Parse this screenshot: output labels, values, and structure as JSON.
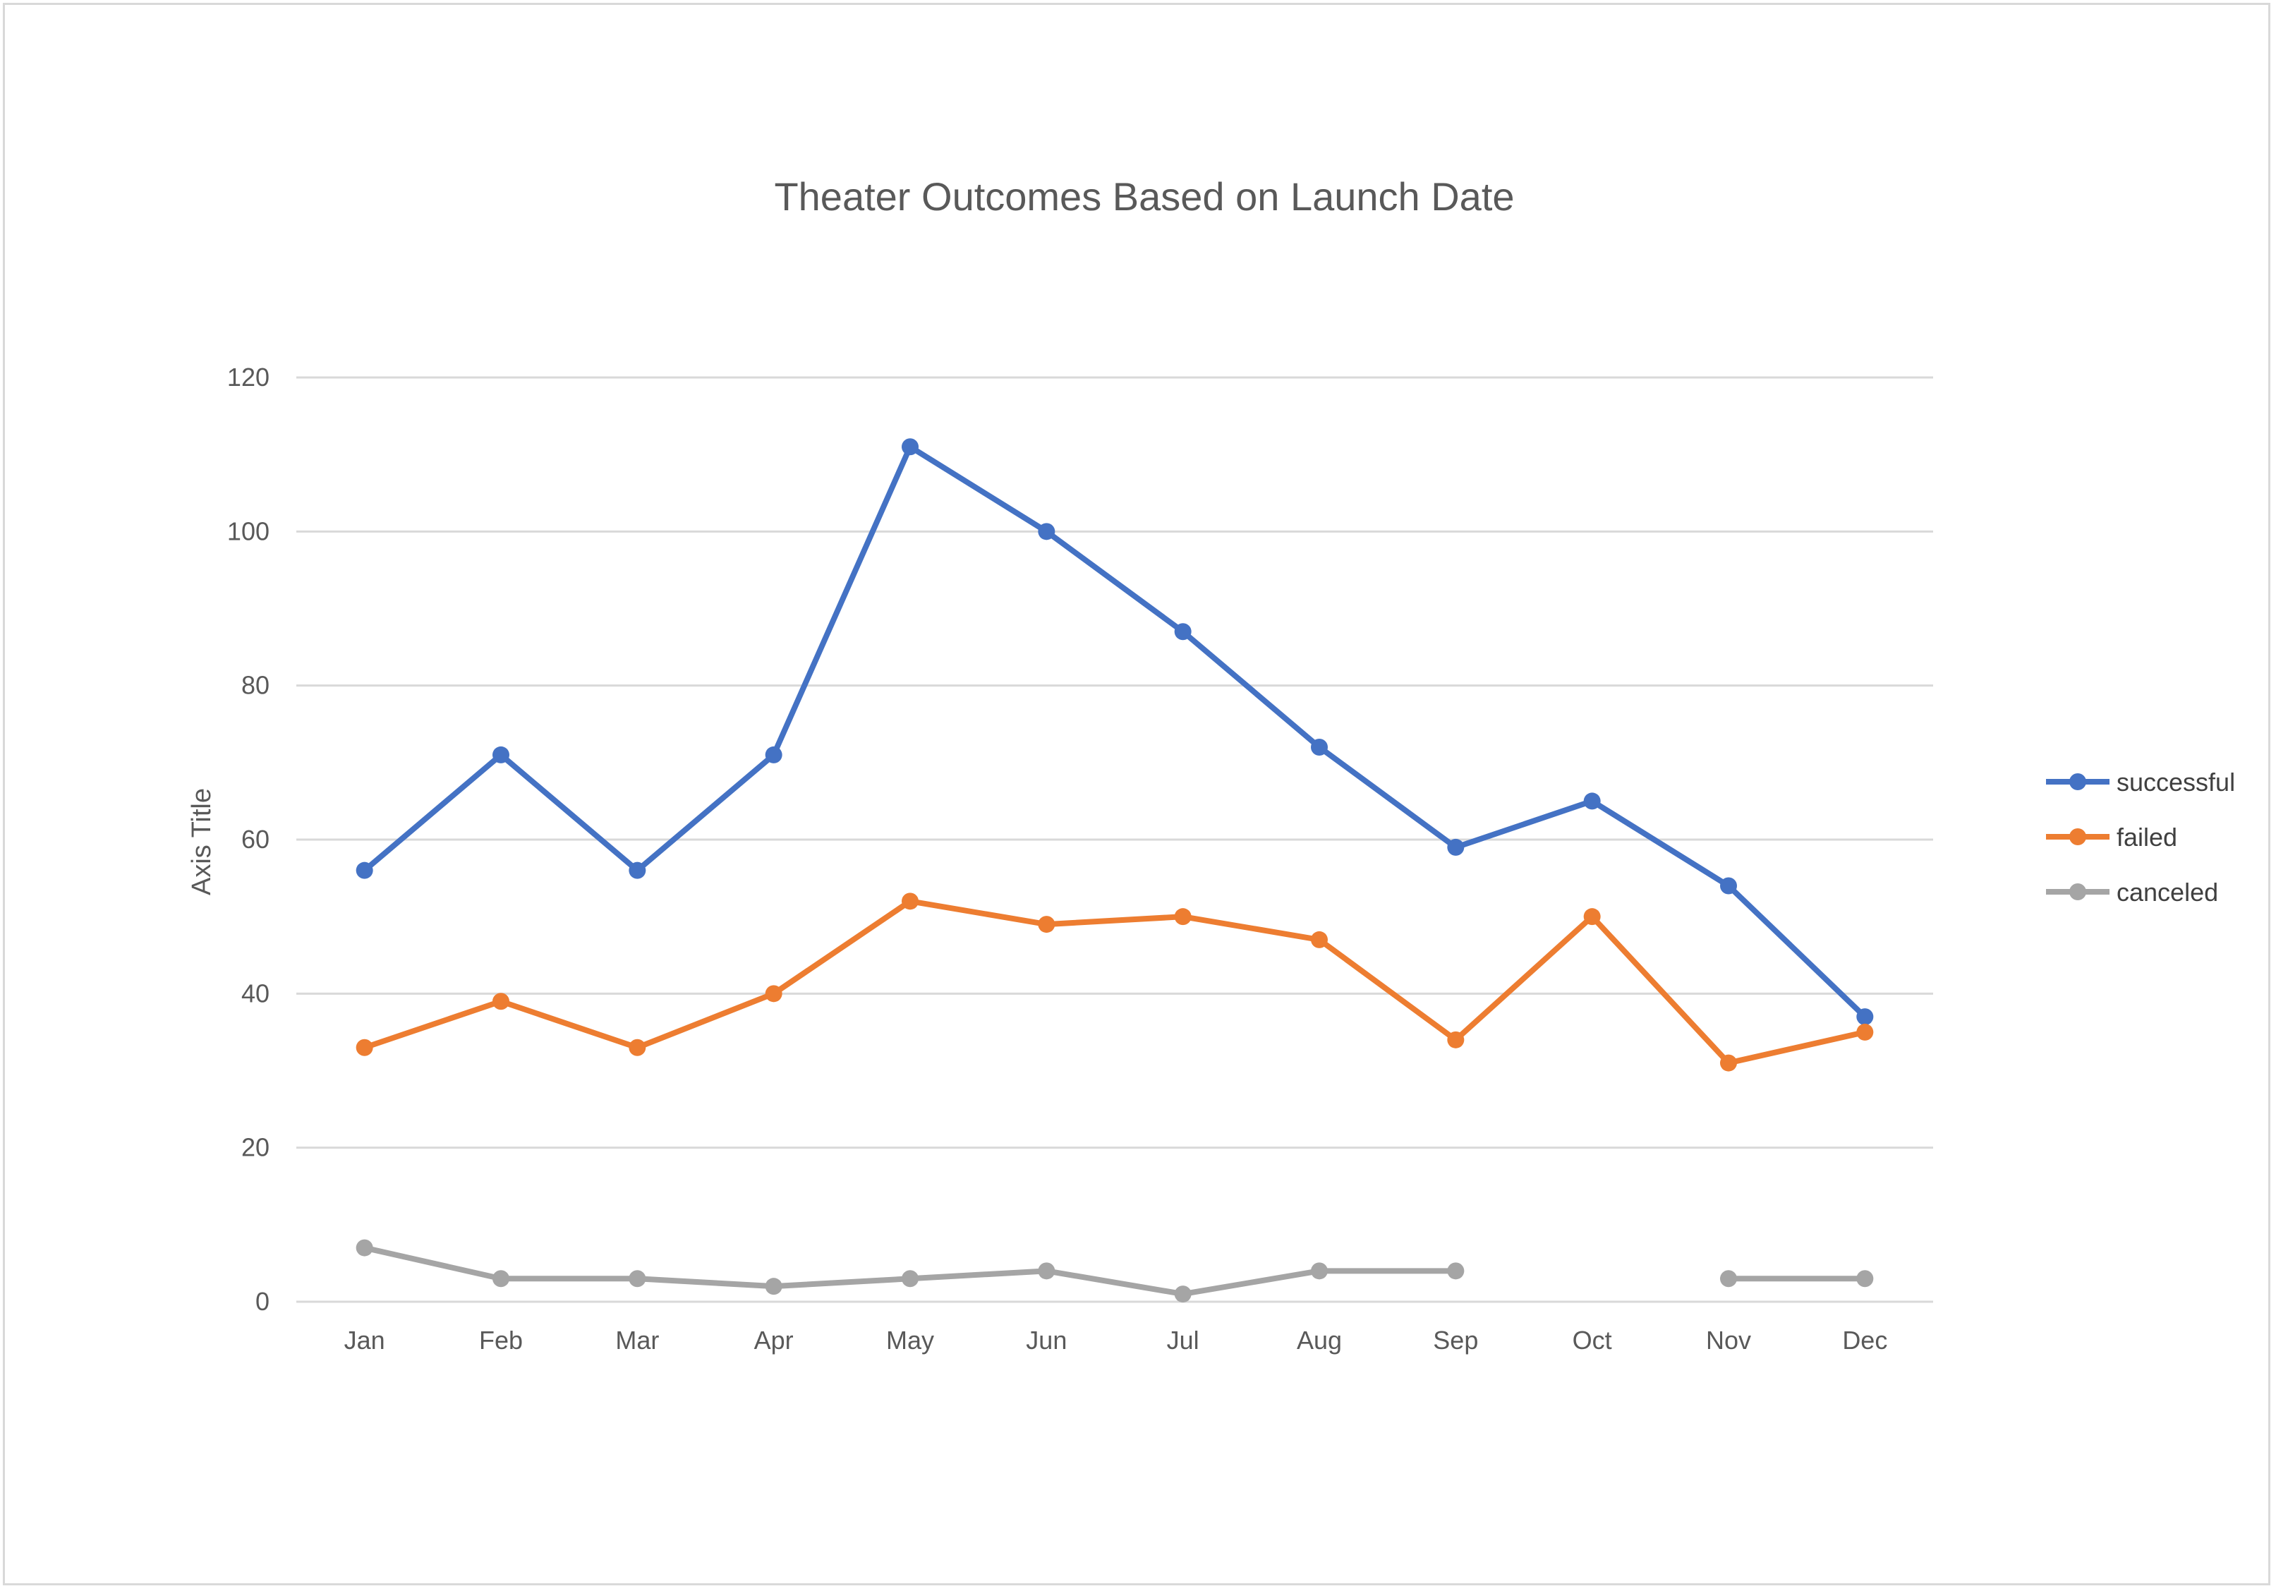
{
  "colors": {
    "successful": "#4472C4",
    "failed": "#ED7D31",
    "canceled": "#A5A5A5",
    "gridline": "#d9d9d9",
    "text": "#595959"
  },
  "chart_data": {
    "type": "line",
    "title": "Theater Outcomes Based on Launch Date",
    "xlabel": "",
    "ylabel": "Axis Title",
    "ylim": [
      0,
      120
    ],
    "yticks": [
      0,
      20,
      40,
      60,
      80,
      100,
      120
    ],
    "grid": true,
    "legend_position": "right",
    "categories": [
      "Jan",
      "Feb",
      "Mar",
      "Apr",
      "May",
      "Jun",
      "Jul",
      "Aug",
      "Sep",
      "Oct",
      "Nov",
      "Dec"
    ],
    "series": [
      {
        "name": "successful",
        "color": "#4472C4",
        "values": [
          56,
          71,
          56,
          71,
          111,
          100,
          87,
          72,
          59,
          65,
          54,
          37
        ]
      },
      {
        "name": "failed",
        "color": "#ED7D31",
        "values": [
          33,
          39,
          33,
          40,
          52,
          49,
          50,
          47,
          34,
          50,
          31,
          35
        ]
      },
      {
        "name": "canceled",
        "color": "#A5A5A5",
        "values": [
          7,
          3,
          3,
          2,
          3,
          4,
          1,
          4,
          4,
          null,
          3,
          3
        ]
      }
    ]
  }
}
